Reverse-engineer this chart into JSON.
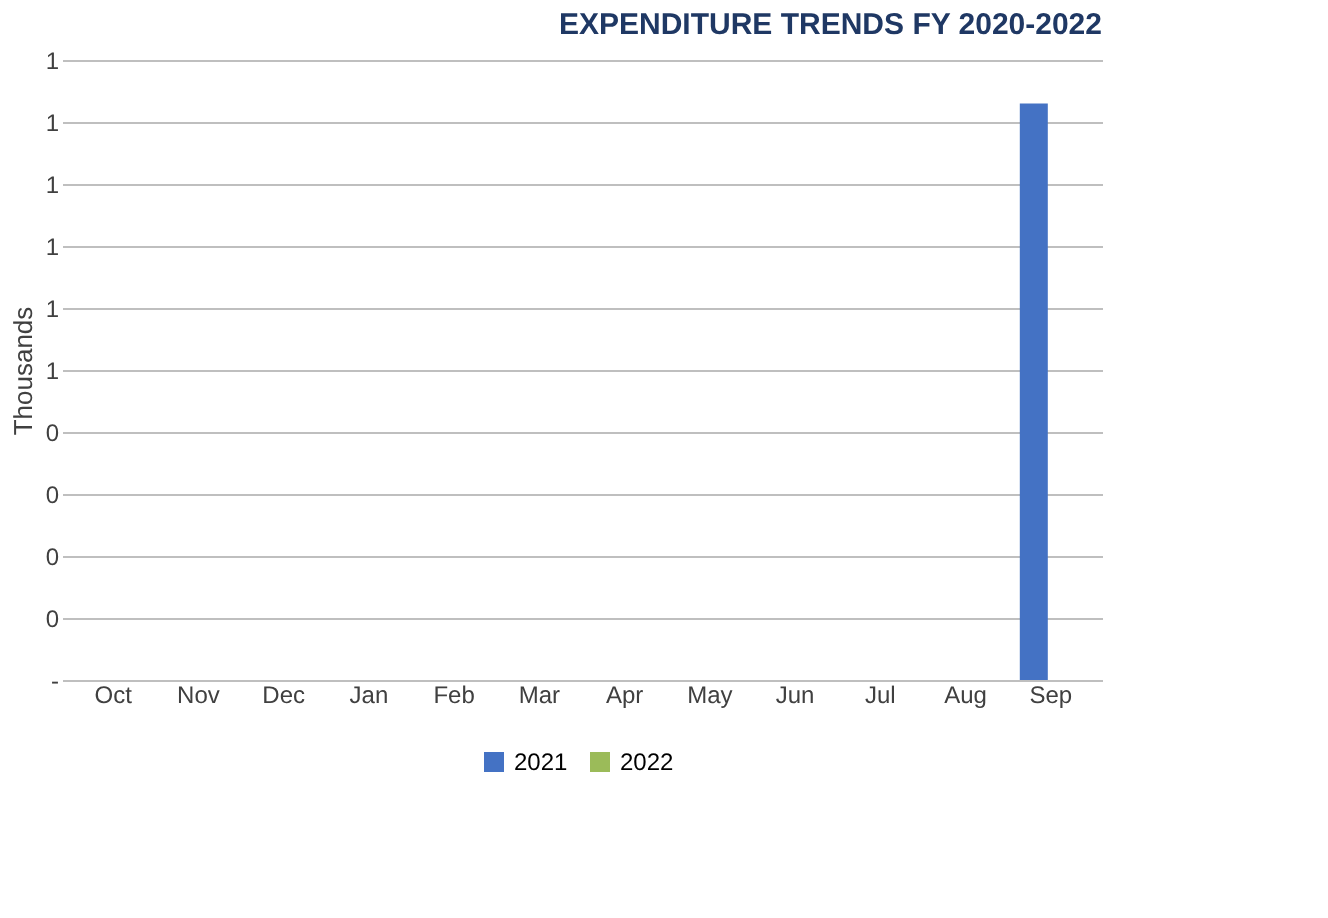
{
  "chart_data": {
    "type": "bar",
    "title": "EXPENDITURE TRENDS FY 2020-2022",
    "ylabel": "Thousands",
    "categories": [
      "Oct",
      "Nov",
      "Dec",
      "Jan",
      "Feb",
      "Mar",
      "Apr",
      "May",
      "Jun",
      "Jul",
      "Aug",
      "Sep"
    ],
    "series": [
      {
        "name": "2021",
        "color": "#4472c4",
        "values": [
          0,
          0,
          0,
          0,
          0,
          0,
          0,
          0,
          0,
          0,
          0,
          0.93
        ]
      },
      {
        "name": "2022",
        "color": "#9bbb59",
        "values": [
          0,
          0,
          null,
          0,
          0,
          0,
          0,
          0,
          0,
          0,
          0,
          0
        ]
      }
    ],
    "ylim": [
      0,
      1
    ],
    "yticks": [
      {
        "value": 0,
        "label": "-"
      },
      {
        "value": 0.1,
        "label": "0"
      },
      {
        "value": 0.2,
        "label": "0"
      },
      {
        "value": 0.3,
        "label": "0"
      },
      {
        "value": 0.4,
        "label": "0"
      },
      {
        "value": 0.5,
        "label": "1"
      },
      {
        "value": 0.6,
        "label": "1"
      },
      {
        "value": 0.7,
        "label": "1"
      },
      {
        "value": 0.8,
        "label": "1"
      },
      {
        "value": 0.9,
        "label": "1"
      },
      {
        "value": 1,
        "label": "1"
      }
    ],
    "grid": "y",
    "legend": "bottom"
  }
}
